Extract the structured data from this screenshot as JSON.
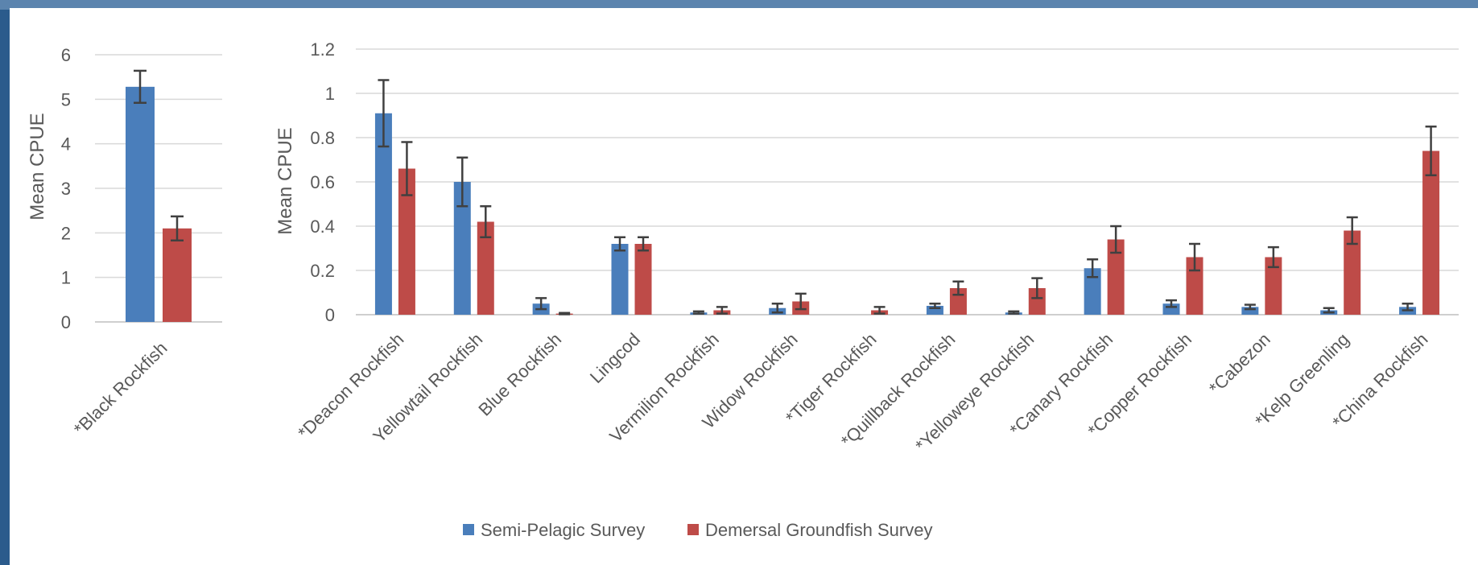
{
  "colors": {
    "semi_pelagic": "#4a7ebb",
    "demersal": "#be4b48"
  },
  "legend": [
    {
      "name": "Semi-Pelagic Survey",
      "color": "#4a7ebb"
    },
    {
      "name": "Demersal Groundfish Survey",
      "color": "#be4b48"
    }
  ],
  "chart_data": [
    {
      "type": "bar",
      "ylabel": "Mean CPUE",
      "ylim": [
        0,
        6
      ],
      "yticks": [
        0,
        1,
        2,
        3,
        4,
        5,
        6
      ],
      "categories": [
        "*Black Rockfish"
      ],
      "series": [
        {
          "name": "Semi-Pelagic Survey",
          "values": [
            5.28
          ],
          "errors": [
            0.36
          ]
        },
        {
          "name": "Demersal Groundfish Survey",
          "values": [
            2.1
          ],
          "errors": [
            0.27
          ]
        }
      ],
      "grid": true
    },
    {
      "type": "bar",
      "ylabel": "Mean CPUE",
      "ylim": [
        0,
        1.2
      ],
      "yticks": [
        0,
        0.2,
        0.4,
        0.6,
        0.8,
        1,
        1.2
      ],
      "categories": [
        "*Deacon Rockfish",
        "Yellowtail Rockfish",
        "Blue Rockfish",
        "Lingcod",
        "Vermilion Rockfish",
        "Widow Rockfish",
        "*Tiger Rockfish",
        "*Quillback Rockfish",
        "*Yelloweye Rockfish",
        "*Canary Rockfish",
        "*Copper Rockfish",
        "*Cabezon",
        "*Kelp Greenling",
        "*China Rockfish"
      ],
      "series": [
        {
          "name": "Semi-Pelagic Survey",
          "values": [
            0.91,
            0.6,
            0.05,
            0.32,
            0.01,
            0.03,
            0.0,
            0.04,
            0.01,
            0.21,
            0.05,
            0.035,
            0.02,
            0.035
          ],
          "errors": [
            0.15,
            0.11,
            0.025,
            0.03,
            0.005,
            0.02,
            0.0,
            0.01,
            0.005,
            0.04,
            0.015,
            0.01,
            0.01,
            0.015
          ]
        },
        {
          "name": "Demersal Groundfish Survey",
          "values": [
            0.66,
            0.42,
            0.005,
            0.32,
            0.02,
            0.06,
            0.02,
            0.12,
            0.12,
            0.34,
            0.26,
            0.26,
            0.38,
            0.74
          ],
          "errors": [
            0.12,
            0.07,
            0.003,
            0.03,
            0.015,
            0.035,
            0.015,
            0.03,
            0.045,
            0.06,
            0.06,
            0.045,
            0.06,
            0.11
          ]
        }
      ],
      "grid": true
    }
  ]
}
